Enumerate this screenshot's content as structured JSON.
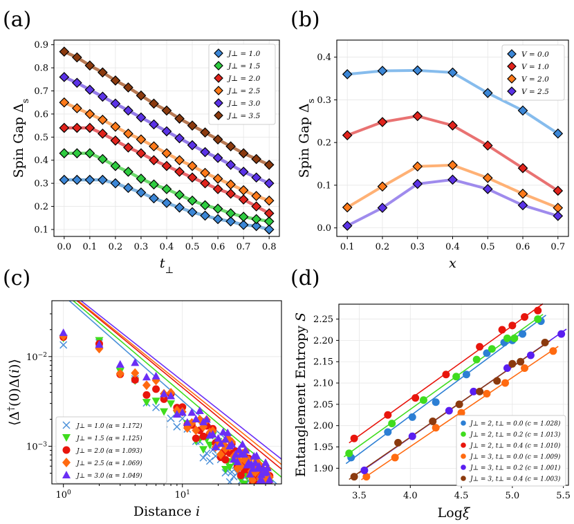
{
  "figure": {
    "panels": [
      "(a)",
      "(b)",
      "(c)",
      "(d)"
    ]
  },
  "chart_data": [
    {
      "panel": "(a)",
      "type": "line",
      "xlabel": "t⊥",
      "ylabel": "Spin Gap Δs",
      "xlim": [
        -0.04,
        0.84
      ],
      "ylim": [
        0.07,
        0.92
      ],
      "xticks": [
        0.0,
        0.1,
        0.2,
        0.3,
        0.4,
        0.5,
        0.6,
        0.7,
        0.8
      ],
      "yticks": [
        0.1,
        0.2,
        0.3,
        0.4,
        0.5,
        0.6,
        0.7,
        0.8,
        0.9
      ],
      "x": [
        0.0,
        0.05,
        0.1,
        0.15,
        0.2,
        0.25,
        0.3,
        0.35,
        0.4,
        0.45,
        0.5,
        0.55,
        0.6,
        0.65,
        0.7,
        0.75,
        0.8
      ],
      "legend_position": "top-right",
      "marker": "diamond",
      "series": [
        {
          "name": "J⊥ = 1.0",
          "color": "#3b86d6",
          "line": "#6fa8dc",
          "values": [
            0.315,
            0.315,
            0.315,
            0.315,
            0.3,
            0.28,
            0.26,
            0.235,
            0.215,
            0.195,
            0.175,
            0.16,
            0.145,
            0.135,
            0.12,
            0.115,
            0.1
          ]
        },
        {
          "name": "J⊥ = 1.5",
          "color": "#2ecc40",
          "line": "#5cd65c",
          "values": [
            0.43,
            0.43,
            0.43,
            0.405,
            0.375,
            0.35,
            0.32,
            0.295,
            0.275,
            0.25,
            0.225,
            0.205,
            0.19,
            0.17,
            0.155,
            0.145,
            0.135
          ]
        },
        {
          "name": "J⊥ = 2.0",
          "color": "#e0231c",
          "line": "#e8555a",
          "values": [
            0.54,
            0.54,
            0.54,
            0.515,
            0.485,
            0.455,
            0.43,
            0.4,
            0.375,
            0.35,
            0.325,
            0.3,
            0.275,
            0.255,
            0.23,
            0.2,
            0.17
          ]
        },
        {
          "name": "J⊥ = 2.5",
          "color": "#ff7a1a",
          "line": "#ffa35a",
          "values": [
            0.65,
            0.625,
            0.6,
            0.575,
            0.545,
            0.515,
            0.49,
            0.46,
            0.43,
            0.4,
            0.375,
            0.345,
            0.32,
            0.295,
            0.27,
            0.245,
            0.225
          ]
        },
        {
          "name": "J⊥ = 3.0",
          "color": "#5a32e6",
          "line": "#8a6ee8",
          "values": [
            0.76,
            0.735,
            0.705,
            0.675,
            0.645,
            0.615,
            0.585,
            0.555,
            0.525,
            0.495,
            0.465,
            0.435,
            0.41,
            0.38,
            0.35,
            0.325,
            0.3
          ]
        },
        {
          "name": "J⊥ = 3.5",
          "color": "#8b3a0e",
          "line": "#b06a40",
          "values": [
            0.87,
            0.845,
            0.81,
            0.78,
            0.745,
            0.715,
            0.68,
            0.645,
            0.615,
            0.58,
            0.55,
            0.52,
            0.49,
            0.46,
            0.43,
            0.405,
            0.38
          ]
        }
      ]
    },
    {
      "panel": "(b)",
      "type": "line",
      "xlabel": "x",
      "ylabel": "Spin Gap Δs",
      "xlim": [
        0.07,
        0.73
      ],
      "ylim": [
        -0.02,
        0.44
      ],
      "xticks": [
        0.1,
        0.2,
        0.3,
        0.4,
        0.5,
        0.6,
        0.7
      ],
      "yticks": [
        0.0,
        0.1,
        0.2,
        0.3,
        0.4
      ],
      "x": [
        0.1,
        0.2,
        0.3,
        0.4,
        0.5,
        0.6,
        0.7
      ],
      "legend_position": "top-right",
      "marker": "diamond",
      "series": [
        {
          "name": "V = 0.0",
          "color": "#3b86d6",
          "line": "#7fb8ec",
          "values": [
            0.36,
            0.368,
            0.369,
            0.364,
            0.316,
            0.275,
            0.221
          ]
        },
        {
          "name": "V = 1.0",
          "color": "#e0231c",
          "line": "#e86a6a",
          "values": [
            0.217,
            0.248,
            0.262,
            0.24,
            0.193,
            0.14,
            0.087
          ]
        },
        {
          "name": "V = 2.0",
          "color": "#ff7a1a",
          "line": "#ffad6e",
          "values": [
            0.048,
            0.097,
            0.144,
            0.147,
            0.117,
            0.08,
            0.047
          ]
        },
        {
          "name": "V = 2.5",
          "color": "#5a32e6",
          "line": "#9a85ec",
          "values": [
            0.005,
            0.047,
            0.103,
            0.113,
            0.091,
            0.053,
            0.028
          ]
        }
      ]
    },
    {
      "panel": "(c)",
      "type": "scatter",
      "xscale": "log",
      "yscale": "log",
      "xlabel": "Distance i",
      "ylabel": "⟨Δ†(0)Δ(i)⟩",
      "xlim": [
        0.8,
        68
      ],
      "ylim": [
        0.00038,
        0.042
      ],
      "xticks_labels": [
        "10^0",
        "10^1"
      ],
      "yticks_labels": [
        "10^-2",
        "10^-3"
      ],
      "legend_position": "bottom-left",
      "series": [
        {
          "name": "J⊥ = 1.0 (α = 1.172)",
          "marker": "x",
          "color": "#4a90d9",
          "alpha": 1.172,
          "A": 0.048,
          "start_value": 0.0135
        },
        {
          "name": "J⊥ = 1.5 (α = 1.125)",
          "marker": "triangle-down",
          "color": "#3fdc1e",
          "alpha": 1.125,
          "A": 0.052,
          "start_value": 0.016
        },
        {
          "name": "J⊥ = 2.0 (α = 1.093)",
          "marker": "circle",
          "color": "#e8150c",
          "alpha": 1.093,
          "A": 0.056,
          "start_value": 0.0165
        },
        {
          "name": "J⊥ = 2.5 (α = 1.069)",
          "marker": "diamond",
          "color": "#ff6a10",
          "alpha": 1.069,
          "A": 0.057,
          "start_value": 0.017
        },
        {
          "name": "J⊥ = 3.0 (α = 1.049)",
          "marker": "triangle-up",
          "color": "#6a2ef5",
          "alpha": 1.049,
          "A": 0.06,
          "start_value": 0.0185
        }
      ]
    },
    {
      "panel": "(d)",
      "type": "scatter",
      "xlabel": "Logξ",
      "ylabel": "Entanglement Entropy S",
      "xlim": [
        3.3,
        5.55
      ],
      "ylim": [
        1.86,
        2.285
      ],
      "xticks": [
        3.5,
        4.0,
        4.5,
        5.0,
        5.5
      ],
      "yticks": [
        1.9,
        1.95,
        2.0,
        2.05,
        2.1,
        2.15,
        2.2,
        2.25
      ],
      "legend_position": "bottom-right",
      "series": [
        {
          "name": "J⊥ = 2, t⊥ = 0.0 (c = 1.028)",
          "color": "#2c7fd4",
          "x": [
            3.42,
            3.78,
            4.02,
            4.25,
            4.55,
            4.75,
            4.92,
            5.0,
            5.1,
            5.28
          ],
          "y": [
            1.925,
            1.985,
            2.02,
            2.055,
            2.12,
            2.17,
            2.195,
            2.2,
            2.215,
            2.245
          ]
        },
        {
          "name": "J⊥ = 2, t⊥ = 0.2 (c = 1.013)",
          "color": "#3fdc1e",
          "x": [
            3.4,
            3.82,
            4.13,
            4.45,
            4.65,
            4.8,
            4.95,
            5.02,
            5.25
          ],
          "y": [
            1.935,
            2.005,
            2.06,
            2.115,
            2.155,
            2.18,
            2.205,
            2.205,
            2.25
          ]
        },
        {
          "name": "J⊥ = 2, t⊥ = 0.4 (c = 1.010)",
          "color": "#e8150c",
          "x": [
            3.45,
            3.78,
            4.05,
            4.35,
            4.68,
            4.9,
            5.0,
            5.12,
            5.25
          ],
          "y": [
            1.97,
            2.025,
            2.065,
            2.12,
            2.185,
            2.225,
            2.235,
            2.255,
            2.27
          ]
        },
        {
          "name": "J⊥ = 3, t⊥ = 0.0 (c = 1.009)",
          "color": "#ff6a10",
          "x": [
            3.57,
            3.85,
            4.25,
            4.5,
            4.75,
            4.93,
            5.12,
            5.4
          ],
          "y": [
            1.88,
            1.925,
            1.995,
            2.03,
            2.075,
            2.1,
            2.135,
            2.175
          ]
        },
        {
          "name": "J⊥ = 3, t⊥ = 0.2 (c = 1.001)",
          "color": "#5a1ef0",
          "x": [
            3.55,
            4.02,
            4.38,
            4.62,
            4.95,
            5.18,
            5.48
          ],
          "y": [
            1.895,
            1.975,
            2.035,
            2.08,
            2.135,
            2.165,
            2.215
          ]
        },
        {
          "name": "J⊥ = 3, t⊥ = 0.4 (c = 1.003)",
          "color": "#8b3a0e",
          "x": [
            3.45,
            3.88,
            4.22,
            4.48,
            4.68,
            4.85,
            5.0,
            5.08,
            5.32
          ],
          "y": [
            1.88,
            1.96,
            2.01,
            2.05,
            2.08,
            2.105,
            2.145,
            2.15,
            2.195
          ]
        }
      ]
    }
  ]
}
